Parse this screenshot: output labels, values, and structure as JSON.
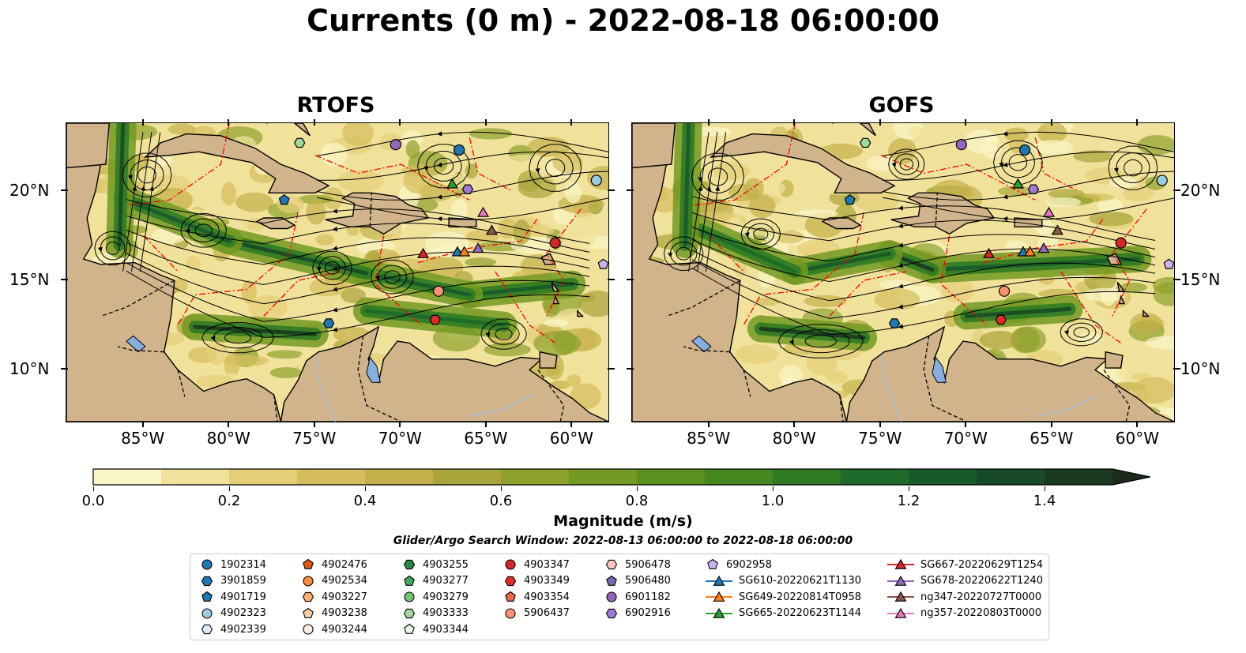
{
  "title": "Currents (0 m) - 2022-08-18 06:00:00",
  "panels": [
    {
      "title": "RTOFS"
    },
    {
      "title": "GOFS"
    }
  ],
  "lon_ticks": [
    "85°W",
    "80°W",
    "75°W",
    "70°W",
    "65°W",
    "60°W"
  ],
  "lat_ticks": [
    "20°N",
    "15°N",
    "10°N"
  ],
  "colorbar": {
    "label": "Magnitude (m/s)",
    "ticks": [
      "0.0",
      "0.2",
      "0.4",
      "0.6",
      "0.8",
      "1.0",
      "1.2",
      "1.4"
    ],
    "range": [
      0.0,
      1.5
    ],
    "extend": "max",
    "colors": [
      "#fbf6c7",
      "#f1e29b",
      "#e4cf77",
      "#d6be5c",
      "#c4b04a",
      "#aaa53a",
      "#8da12c",
      "#739a22",
      "#5b911f",
      "#46871f",
      "#2f7b23",
      "#1d6a2b",
      "#195a2c",
      "#184a27",
      "#193a21",
      "#1b2b1b"
    ]
  },
  "search_window": "Glider/Argo Search Window: 2022-08-13 06:00:00 to 2022-08-18 06:00:00",
  "colors": {
    "land": "#d2b48c",
    "water_body": "#87aee0",
    "eez": "#ff0000",
    "streamline": "#000000"
  },
  "legend": {
    "columns": [
      [
        {
          "label": "1902314",
          "marker": "circle",
          "color": "#1f77b4"
        },
        {
          "label": "3901859",
          "marker": "hexagon",
          "color": "#1f77b4"
        },
        {
          "label": "4901719",
          "marker": "pentagon",
          "color": "#1f77b4"
        },
        {
          "label": "4902323",
          "marker": "circle",
          "color": "#9ecae1"
        },
        {
          "label": "4902339",
          "marker": "hexagon",
          "color": "#deebf7"
        }
      ],
      [
        {
          "label": "4902476",
          "marker": "pentagon",
          "color": "#e6550d"
        },
        {
          "label": "4902534",
          "marker": "circle",
          "color": "#fd8d3c"
        },
        {
          "label": "4903227",
          "marker": "hexagon",
          "color": "#fdae6b"
        },
        {
          "label": "4903238",
          "marker": "pentagon",
          "color": "#fdd0a2"
        },
        {
          "label": "4903244",
          "marker": "circle",
          "color": "#feedde"
        }
      ],
      [
        {
          "label": "4903255",
          "marker": "hexagon",
          "color": "#238b45"
        },
        {
          "label": "4903277",
          "marker": "pentagon",
          "color": "#41ab5d"
        },
        {
          "label": "4903279",
          "marker": "circle",
          "color": "#74c476"
        },
        {
          "label": "4903333",
          "marker": "hexagon",
          "color": "#a1d99b"
        },
        {
          "label": "4903344",
          "marker": "pentagon",
          "color": "#e5f5e0"
        }
      ],
      [
        {
          "label": "4903347",
          "marker": "circle",
          "color": "#d62728"
        },
        {
          "label": "4903349",
          "marker": "hexagon",
          "color": "#de2d26"
        },
        {
          "label": "4903354",
          "marker": "pentagon",
          "color": "#ef6548"
        },
        {
          "label": "5906437",
          "marker": "circle",
          "color": "#fc9272"
        }
      ],
      [
        {
          "label": "5906478",
          "marker": "hexagon",
          "color": "#fcc5c0"
        },
        {
          "label": "5906480",
          "marker": "pentagon",
          "color": "#756bb1"
        },
        {
          "label": "6901182",
          "marker": "circle",
          "color": "#9467bd"
        },
        {
          "label": "6902916",
          "marker": "hexagon",
          "color": "#9e7ad6"
        }
      ],
      [
        {
          "label": "6902958",
          "marker": "pentagon",
          "color": "#c9b3ef"
        },
        {
          "label": "SG610-20220621T1130",
          "marker": "triangle-line",
          "color": "#1f77b4"
        },
        {
          "label": "SG649-20220814T0958",
          "marker": "triangle-line",
          "color": "#ff7f0e"
        },
        {
          "label": "SG665-20220623T1144",
          "marker": "triangle-line",
          "color": "#2ca02c"
        }
      ],
      [
        {
          "label": "SG667-20220629T1254",
          "marker": "triangle-line",
          "color": "#d62728"
        },
        {
          "label": "SG678-20220622T1240",
          "marker": "triangle-line",
          "color": "#9467bd"
        },
        {
          "label": "ng347-20220727T0000",
          "marker": "triangle-line",
          "color": "#8c564b"
        },
        {
          "label": "ng357-20220803T0000",
          "marker": "triangle-line",
          "color": "#e377c2"
        }
      ]
    ]
  },
  "map_extent": {
    "lon": [
      -89.5,
      -57.9
    ],
    "lat": [
      7.1,
      23.8
    ]
  },
  "markers": [
    {
      "id": "1902314",
      "lon": -66.6,
      "lat": 22.3
    },
    {
      "id": "3901859",
      "lon": -74.2,
      "lat": 12.6
    },
    {
      "id": "4901719",
      "lon": -76.8,
      "lat": 19.5
    },
    {
      "id": "4902323",
      "lon": -58.6,
      "lat": 20.6
    },
    {
      "id": "4903333",
      "lon": -75.9,
      "lat": 22.7
    },
    {
      "id": "6901182",
      "lon": -70.3,
      "lat": 22.6
    },
    {
      "id": "6902916",
      "lon": -66.1,
      "lat": 20.1
    },
    {
      "id": "6902958",
      "lon": -58.2,
      "lat": 15.9
    },
    {
      "id": "4903347",
      "lon": -61.0,
      "lat": 17.1
    },
    {
      "id": "4903349",
      "lon": -68.0,
      "lat": 12.8
    },
    {
      "id": "5906437",
      "lon": -67.8,
      "lat": 14.4
    },
    {
      "id": "SG667-20220629T1254",
      "lon": -68.7,
      "lat": 16.5
    },
    {
      "id": "SG610-20220621T1130",
      "lon": -66.7,
      "lat": 16.6
    },
    {
      "id": "SG649-20220814T0958",
      "lon": -66.3,
      "lat": 16.6
    },
    {
      "id": "SG678-20220622T1240",
      "lon": -65.5,
      "lat": 16.8
    },
    {
      "id": "SG665-20220623T1144",
      "lon": -67.0,
      "lat": 20.4
    },
    {
      "id": "ng347-20220727T0000",
      "lon": -64.7,
      "lat": 17.8
    },
    {
      "id": "ng357-20220803T0000",
      "lon": -65.2,
      "lat": 18.8
    }
  ]
}
